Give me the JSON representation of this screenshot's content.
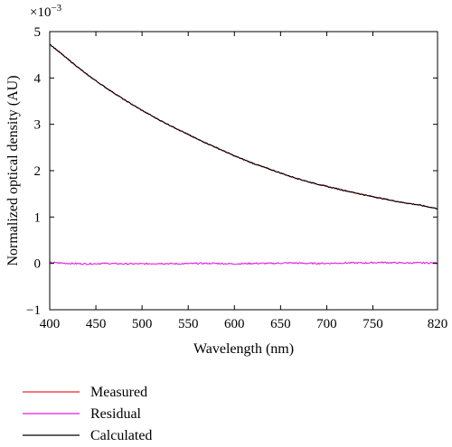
{
  "chart_data": {
    "type": "line",
    "xlabel": "Wavelength (nm)",
    "ylabel": "Normalized optical density (AU)",
    "y_multiplier": "×10",
    "y_multiplier_exp": "−3",
    "xlim": [
      400,
      820
    ],
    "ylim": [
      -1,
      5
    ],
    "xticks": [
      400,
      450,
      500,
      550,
      600,
      650,
      700,
      750,
      820
    ],
    "xtick_labels": [
      "400",
      "450",
      "500",
      "550",
      "600",
      "650",
      "700",
      "750",
      "820"
    ],
    "yticks": [
      -1,
      0,
      1,
      2,
      3,
      4,
      5
    ],
    "ytick_labels": [
      "−1",
      "0",
      "1",
      "2",
      "3",
      "4",
      "5"
    ],
    "grid": false,
    "legend_position": "below",
    "series": [
      {
        "name": "Measured",
        "color": "#e8282e",
        "x": [
          400,
          420,
          440,
          460,
          480,
          500,
          520,
          540,
          560,
          580,
          600,
          620,
          640,
          660,
          680,
          700,
          720,
          740,
          760,
          780,
          800,
          820
        ],
        "y": [
          4.73,
          4.4,
          4.08,
          3.8,
          3.54,
          3.3,
          3.08,
          2.88,
          2.68,
          2.5,
          2.32,
          2.16,
          2.02,
          1.88,
          1.76,
          1.66,
          1.57,
          1.48,
          1.4,
          1.32,
          1.26,
          1.18
        ]
      },
      {
        "name": "Residual",
        "color": "#e01ee0",
        "x": [
          400,
          420,
          440,
          460,
          480,
          500,
          520,
          540,
          560,
          580,
          600,
          620,
          640,
          660,
          680,
          700,
          720,
          740,
          760,
          780,
          800,
          820
        ],
        "y": [
          0.02,
          0.0,
          -0.01,
          0.0,
          -0.01,
          -0.01,
          0.0,
          -0.01,
          0.0,
          0.0,
          -0.01,
          0.0,
          0.0,
          0.01,
          0.0,
          0.0,
          0.01,
          0.01,
          0.02,
          0.01,
          0.01,
          0.01
        ]
      },
      {
        "name": "Calculated",
        "color": "#000000",
        "x": [
          400,
          420,
          440,
          460,
          480,
          500,
          520,
          540,
          560,
          580,
          600,
          620,
          640,
          660,
          680,
          700,
          720,
          740,
          760,
          780,
          800,
          820
        ],
        "y": [
          4.73,
          4.4,
          4.08,
          3.8,
          3.54,
          3.3,
          3.08,
          2.88,
          2.68,
          2.5,
          2.32,
          2.16,
          2.02,
          1.88,
          1.76,
          1.66,
          1.57,
          1.48,
          1.4,
          1.32,
          1.26,
          1.18
        ]
      }
    ]
  }
}
